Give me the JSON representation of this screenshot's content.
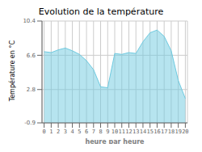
{
  "chart_data": {
    "type": "area",
    "title": "Evolution de la température",
    "x_label": "heure par heure",
    "y_label": "Température en °C",
    "x": [
      0,
      1,
      2,
      3,
      4,
      5,
      6,
      7,
      8,
      9,
      10,
      11,
      12,
      13,
      14,
      15,
      16,
      17,
      18,
      19,
      20
    ],
    "values": [
      7.0,
      6.9,
      7.2,
      7.4,
      7.1,
      6.7,
      6.0,
      5.0,
      3.1,
      3.0,
      6.8,
      6.7,
      6.9,
      6.8,
      8.1,
      9.1,
      9.4,
      8.7,
      7.1,
      3.8,
      1.8
    ],
    "color": "#6ecae0",
    "xlim": [
      -0.3,
      20.3
    ],
    "xticks": [
      0,
      1,
      2,
      3,
      4,
      5,
      6,
      7,
      8,
      9,
      10,
      11,
      12,
      13,
      14,
      15,
      16,
      17,
      18,
      19,
      20
    ],
    "ylim": [
      -0.9,
      10.4
    ],
    "yticks": [
      -0.9,
      2.8,
      6.6,
      10.4
    ],
    "grid": true
  }
}
